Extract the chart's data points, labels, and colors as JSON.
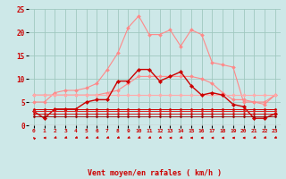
{
  "background_color": "#cde8e8",
  "grid_color": "#a0c8c0",
  "xlabel": "Vent moyen/en rafales ( km/h )",
  "x": [
    0,
    1,
    2,
    3,
    4,
    5,
    6,
    7,
    8,
    9,
    10,
    11,
    12,
    13,
    14,
    15,
    16,
    17,
    18,
    19,
    20,
    21,
    22,
    23
  ],
  "ylim": [
    0,
    25
  ],
  "yticks": [
    0,
    5,
    10,
    15,
    20,
    25
  ],
  "series": [
    {
      "color": "#ff8888",
      "lw": 0.8,
      "ms": 2.0,
      "y": [
        5.0,
        5.0,
        7.0,
        7.5,
        7.5,
        8.0,
        9.0,
        12.0,
        15.5,
        21.0,
        23.5,
        19.5,
        19.5,
        20.5,
        17.0,
        20.5,
        19.5,
        13.5,
        13.0,
        12.5,
        5.0,
        5.0,
        4.5,
        6.5
      ]
    },
    {
      "color": "#ff8888",
      "lw": 0.8,
      "ms": 2.0,
      "y": [
        6.5,
        6.5,
        6.5,
        6.5,
        6.5,
        6.5,
        6.5,
        7.0,
        7.5,
        9.0,
        10.5,
        10.5,
        10.5,
        10.5,
        10.5,
        10.5,
        10.0,
        9.0,
        7.0,
        5.5,
        5.5,
        5.0,
        5.0,
        6.5
      ]
    },
    {
      "color": "#ffaaaa",
      "lw": 0.8,
      "ms": 2.0,
      "y": [
        6.5,
        6.5,
        6.5,
        6.5,
        6.5,
        6.5,
        6.5,
        6.5,
        6.5,
        6.5,
        6.5,
        6.5,
        6.5,
        6.5,
        6.5,
        6.5,
        6.5,
        6.5,
        6.5,
        6.5,
        6.5,
        6.5,
        6.5,
        6.5
      ]
    },
    {
      "color": "#cc0000",
      "lw": 1.0,
      "ms": 2.2,
      "y": [
        3.0,
        1.5,
        3.5,
        3.5,
        3.5,
        5.0,
        5.5,
        5.5,
        9.5,
        9.5,
        12.0,
        12.0,
        9.5,
        10.5,
        11.5,
        8.5,
        6.5,
        7.0,
        6.5,
        4.5,
        4.0,
        1.5,
        1.5,
        2.5
      ]
    },
    {
      "color": "#cc0000",
      "lw": 0.7,
      "ms": 1.5,
      "y": [
        3.5,
        3.5,
        3.5,
        3.5,
        3.5,
        3.5,
        3.5,
        3.5,
        3.5,
        3.5,
        3.5,
        3.5,
        3.5,
        3.5,
        3.5,
        3.5,
        3.5,
        3.5,
        3.5,
        3.5,
        3.5,
        3.5,
        3.5,
        3.5
      ]
    },
    {
      "color": "#dd2222",
      "lw": 0.7,
      "ms": 1.5,
      "y": [
        3.0,
        3.0,
        3.0,
        3.0,
        3.0,
        3.0,
        3.0,
        3.0,
        3.0,
        3.0,
        3.0,
        3.0,
        3.0,
        3.0,
        3.0,
        3.0,
        3.0,
        3.0,
        3.0,
        3.0,
        3.0,
        3.0,
        3.0,
        3.0
      ]
    },
    {
      "color": "#cc0000",
      "lw": 0.6,
      "ms": 1.5,
      "y": [
        2.5,
        2.5,
        2.5,
        2.5,
        2.5,
        2.5,
        2.5,
        2.5,
        2.5,
        2.5,
        2.5,
        2.5,
        2.5,
        2.5,
        2.5,
        2.5,
        2.5,
        2.5,
        2.5,
        2.5,
        2.5,
        2.5,
        2.5,
        2.5
      ]
    },
    {
      "color": "#990000",
      "lw": 0.6,
      "ms": 1.5,
      "y": [
        2.0,
        2.0,
        2.0,
        2.0,
        2.0,
        2.0,
        2.0,
        2.0,
        2.0,
        2.0,
        2.0,
        2.0,
        2.0,
        2.0,
        2.0,
        2.0,
        2.0,
        2.0,
        2.0,
        2.0,
        2.0,
        2.0,
        2.0,
        2.0
      ]
    }
  ],
  "arrow_angles": [
    315,
    270,
    250,
    250,
    250,
    250,
    250,
    250,
    250,
    250,
    250,
    250,
    250,
    270,
    250,
    270,
    270,
    270,
    270,
    270,
    270,
    250,
    250,
    250
  ],
  "xtick_labels": [
    "0",
    "1",
    "2",
    "3",
    "4",
    "5",
    "6",
    "7",
    "8",
    "9",
    "10",
    "11",
    "12",
    "13",
    "14",
    "15",
    "16",
    "17",
    "18",
    "19",
    "20",
    "21",
    "22",
    "23"
  ]
}
